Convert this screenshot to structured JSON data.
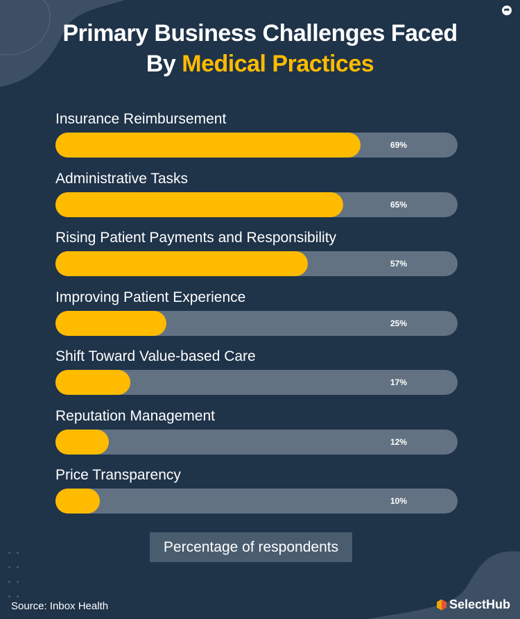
{
  "title": {
    "line1": "Primary Business Challenges Faced",
    "line2_plain": "By ",
    "line2_accent": "Medical Practices"
  },
  "colors": {
    "background": "#1f3349",
    "bar": "#ffbb00",
    "track": "#627282",
    "accent": "#ffbb00"
  },
  "chart_data": {
    "type": "bar",
    "orientation": "horizontal",
    "categories": [
      "Insurance Reimbursement",
      "Administrative Tasks",
      "Rising Patient Payments and Responsibility",
      "Improving Patient Experience",
      "Shift Toward Value-based Care",
      "Reputation Management",
      "Price Transparency"
    ],
    "values": [
      69,
      65,
      57,
      25,
      17,
      12,
      10
    ],
    "value_labels": [
      "69%",
      "65%",
      "57%",
      "25%",
      "17%",
      "12%",
      "10%"
    ],
    "legend": "Percentage of respondents",
    "unit": "%"
  },
  "source": "Source: Inbox Health",
  "brand": "SelectHub",
  "icons": {
    "share": "share-icon",
    "logo": "selecthub-cube-logo"
  }
}
